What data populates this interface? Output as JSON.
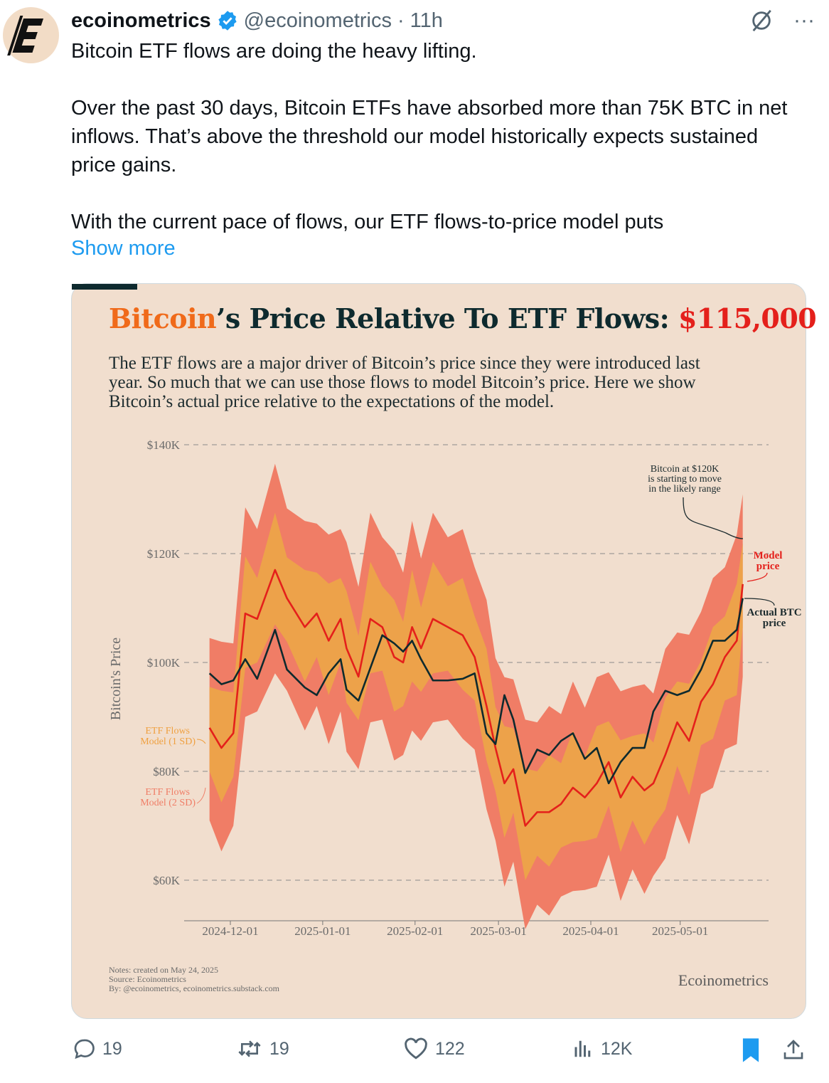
{
  "tweet": {
    "display_name": "ecoinometrics",
    "handle": "@ecoinometrics",
    "separator": "·",
    "time": "11h",
    "paragraphs": [
      "Bitcoin ETF flows are doing the heavy lifting.",
      "Over the past 30 days, Bitcoin ETFs have absorbed more than 75K BTC in net inflows. That’s above the threshold our model historically expects sustained price gains.",
      "With the current pace of flows, our ETF flows-to-price model puts"
    ],
    "show_more": "Show more",
    "actions": {
      "replies": "19",
      "reposts": "19",
      "likes": "122",
      "views": "12K"
    }
  },
  "colors": {
    "accent": "#1d9bf0",
    "actual": "#0e2a2e",
    "model": "#e4201b",
    "band1": "#eda24a",
    "band2": "#f07d66"
  },
  "chart_data": {
    "type": "line",
    "title_parts": [
      "Bitcoin",
      "’s Price Relative To ETF Flows: ",
      "$115,000"
    ],
    "subtitle": "The ETF flows are a major driver of Bitcoin’s price since they were introduced last year. So much that we can use those flows to model Bitcoin’s price. Here we show Bitcoin’s actual price relative to the expectations of the model.",
    "ylabel": "Bitcoin's Price",
    "ylim": [
      52,
      140
    ],
    "yticks": [
      {
        "v": 140,
        "label": "$140K"
      },
      {
        "v": 120,
        "label": "$120K"
      },
      {
        "v": 100,
        "label": "$100K"
      },
      {
        "v": 80,
        "label": "$80K"
      },
      {
        "v": 60,
        "label": "$60K"
      }
    ],
    "xticks": [
      "2024-12-01",
      "2025-01-01",
      "2025-02-01",
      "2025-03-01",
      "2025-04-01",
      "2025-05-01"
    ],
    "xlim": [
      "2024-11-17",
      "2025-06-01"
    ],
    "band_1sd_halfwidth": 9,
    "band_2sd_halfwidth": 18,
    "dates": [
      "2024-11-24",
      "2024-11-28",
      "2024-12-02",
      "2024-12-06",
      "2024-12-10",
      "2024-12-16",
      "2024-12-20",
      "2024-12-26",
      "2024-12-30",
      "2025-01-03",
      "2025-01-07",
      "2025-01-09",
      "2025-01-13",
      "2025-01-17",
      "2025-01-21",
      "2025-01-25",
      "2025-01-28",
      "2025-01-31",
      "2025-02-03",
      "2025-02-07",
      "2025-02-12",
      "2025-02-17",
      "2025-02-21",
      "2025-02-25",
      "2025-02-28",
      "2025-03-03",
      "2025-03-06",
      "2025-03-10",
      "2025-03-14",
      "2025-03-18",
      "2025-03-22",
      "2025-03-26",
      "2025-03-30",
      "2025-04-03",
      "2025-04-07",
      "2025-04-11",
      "2025-04-15",
      "2025-04-19",
      "2025-04-22",
      "2025-04-26",
      "2025-04-30",
      "2025-05-04",
      "2025-05-08",
      "2025-05-12",
      "2025-05-16",
      "2025-05-20",
      "2025-05-22"
    ],
    "series": [
      {
        "name": "Actual BTC price",
        "values": [
          98,
          96,
          96.7,
          100.6,
          97,
          106,
          98.7,
          95.4,
          94,
          98,
          100.6,
          95,
          93,
          99,
          105,
          103.5,
          102,
          104,
          100.6,
          96.7,
          96.7,
          97,
          98,
          87,
          85,
          94,
          89.5,
          79.7,
          84,
          83,
          85.6,
          87,
          82.3,
          84.3,
          77.8,
          81.7,
          84.3,
          84.3,
          91,
          94.8,
          94,
          94.8,
          98.7,
          104,
          104,
          106,
          111.8
        ]
      },
      {
        "name": "Model price",
        "values": [
          88,
          84.3,
          87,
          109,
          108,
          117,
          111.8,
          106.5,
          109,
          104,
          108,
          102.6,
          97.4,
          108,
          106.5,
          101,
          100,
          106.5,
          102.6,
          108,
          106.5,
          105,
          101,
          92,
          84.3,
          77.8,
          80.4,
          70,
          72.5,
          72.5,
          74,
          77,
          75.2,
          77.8,
          81.7,
          75.2,
          79,
          76.5,
          77.8,
          83,
          89,
          85.6,
          92.8,
          96,
          101,
          104,
          114.4
        ]
      }
    ],
    "legend": {
      "sd1": [
        "ETF Flows",
        "Model (1 SD)"
      ],
      "sd2": [
        "ETF Flows",
        "Model (2 SD)"
      ]
    },
    "annotations": {
      "main": [
        "Bitcoin at $120K",
        "is starting to move",
        "in the likely range"
      ],
      "model": [
        "Model",
        "price"
      ],
      "actual": [
        "Actual BTC",
        "price"
      ]
    },
    "notes": [
      "Notes: created on May 24, 2025",
      "Source: Ecoinometrics",
      "By: @ecoinometrics, ecoinometrics.substack.com"
    ],
    "brand": "Ecoinometrics"
  }
}
